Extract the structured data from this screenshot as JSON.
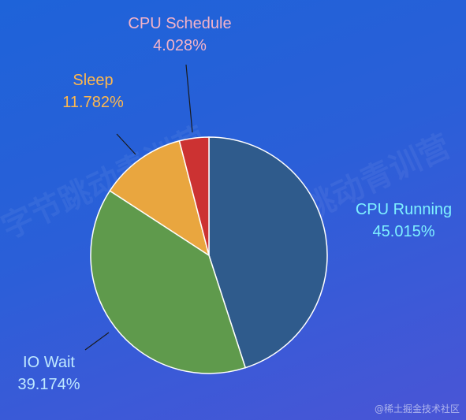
{
  "chart_data": {
    "type": "pie",
    "title": "",
    "slices": [
      {
        "label": "CPU Running",
        "value": 45.015,
        "value_label": "45.015%",
        "color": "#2f5b8c",
        "label_color": "#7ef0ff"
      },
      {
        "label": "IO Wait",
        "value": 39.174,
        "value_label": "39.174%",
        "color": "#5f9a4c",
        "label_color": "#bfe9ff"
      },
      {
        "label": "Sleep",
        "value": 11.782,
        "value_label": "11.782%",
        "color": "#e9a63f",
        "label_color": "#ffb84d"
      },
      {
        "label": "CPU Schedule",
        "value": 4.028,
        "value_label": "4.028%",
        "color": "#cc3232",
        "label_color": "#f4b3c8"
      }
    ]
  },
  "watermark": {
    "corner_text": "@稀土掘金技术社区",
    "overlay_text": "字节跳动青训营"
  }
}
